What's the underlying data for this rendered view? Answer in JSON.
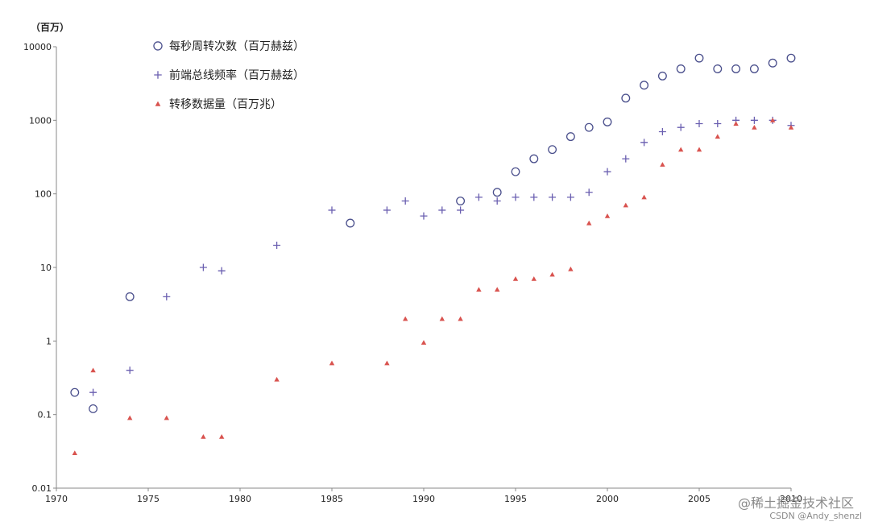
{
  "chart_data": {
    "type": "scatter",
    "title": "",
    "xlabel": "",
    "ylabel": "",
    "y_unit": "（百万）",
    "y_scale": "log",
    "xlim": [
      1970,
      2010
    ],
    "ylim": [
      0.01,
      10000
    ],
    "x_ticks": [
      "1970",
      "1975",
      "1980",
      "1985",
      "1990",
      "1995",
      "2000",
      "2005",
      "2010"
    ],
    "y_ticks": [
      "0.01",
      "0.1",
      "1",
      "10",
      "100",
      "1000",
      "10000"
    ],
    "grid": false,
    "legend_position": "top-left",
    "series": [
      {
        "name": "每秒周转次数（百万赫兹）",
        "marker": "circle",
        "color": "#4a4f8c",
        "x": [
          1971,
          1972,
          1974,
          1986,
          1992,
          1994,
          1995,
          1996,
          1997,
          1998,
          1999,
          2000,
          2001,
          2002,
          2003,
          2004,
          2005,
          2006,
          2007,
          2008,
          2009,
          2010
        ],
        "y": [
          0.2,
          0.12,
          4,
          40,
          80,
          105,
          200,
          300,
          400,
          600,
          800,
          950,
          2000,
          3000,
          4000,
          5000,
          7000,
          5000,
          5000,
          5000,
          6000,
          7000
        ]
      },
      {
        "name": "前端总线频率（百万赫兹）",
        "marker": "plus",
        "color": "#6a5fb0",
        "x": [
          1972,
          1974,
          1976,
          1978,
          1979,
          1982,
          1985,
          1988,
          1989,
          1990,
          1991,
          1992,
          1993,
          1994,
          1995,
          1996,
          1997,
          1998,
          1999,
          2000,
          2001,
          2002,
          2003,
          2004,
          2005,
          2006,
          2007,
          2008,
          2009,
          2010
        ],
        "y": [
          0.2,
          0.4,
          4,
          10,
          9,
          20,
          60,
          60,
          80,
          50,
          60,
          60,
          90,
          80,
          90,
          90,
          90,
          90,
          105,
          200,
          300,
          500,
          700,
          800,
          900,
          900,
          1000,
          1000,
          1000,
          850
        ]
      },
      {
        "name": "转移数据量（百万兆）",
        "marker": "triangle",
        "color": "#d9534f",
        "x": [
          1971,
          1972,
          1974,
          1976,
          1978,
          1979,
          1982,
          1985,
          1988,
          1989,
          1990,
          1991,
          1992,
          1993,
          1994,
          1995,
          1996,
          1997,
          1998,
          1999,
          2000,
          2001,
          2002,
          2003,
          2004,
          2005,
          2006,
          2007,
          2008,
          2009,
          2010
        ],
        "y": [
          0.03,
          0.4,
          0.09,
          0.09,
          0.05,
          0.05,
          0.3,
          0.5,
          0.5,
          2,
          0.95,
          2,
          2,
          5,
          5,
          7,
          7,
          8,
          9.5,
          40,
          50,
          70,
          90,
          250,
          400,
          400,
          600,
          900,
          800,
          1000,
          800
        ]
      }
    ]
  },
  "watermark": {
    "line1": "@稀土掘金技术社区",
    "line2": "CSDN @Andy_shenzl"
  }
}
